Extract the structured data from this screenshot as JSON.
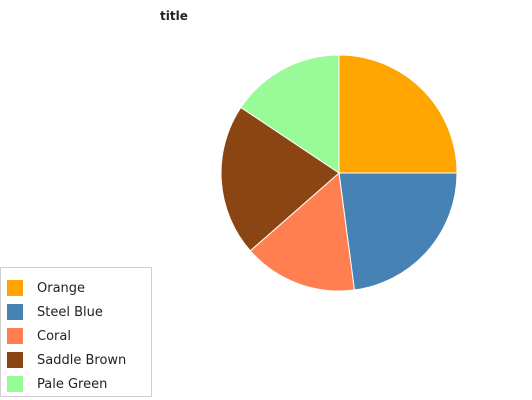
{
  "chart_data": {
    "type": "pie",
    "title": "title",
    "categories": [
      "Orange",
      "Steel Blue",
      "Coral",
      "Saddle Brown",
      "Pale Green"
    ],
    "values": [
      24,
      22,
      15,
      20,
      15
    ],
    "colors": [
      "#ffa500",
      "#4682b4",
      "#ff7f50",
      "#8b4513",
      "#98fb98"
    ],
    "start_angle_deg": 0,
    "direction": "clockwise",
    "legend_position": "bottom-left"
  },
  "legend": {
    "items": [
      {
        "label": "Orange",
        "color": "#ffa500"
      },
      {
        "label": "Steel Blue",
        "color": "#4682b4"
      },
      {
        "label": "Coral",
        "color": "#ff7f50"
      },
      {
        "label": "Saddle Brown",
        "color": "#8b4513"
      },
      {
        "label": "Pale Green",
        "color": "#98fb98"
      }
    ]
  }
}
